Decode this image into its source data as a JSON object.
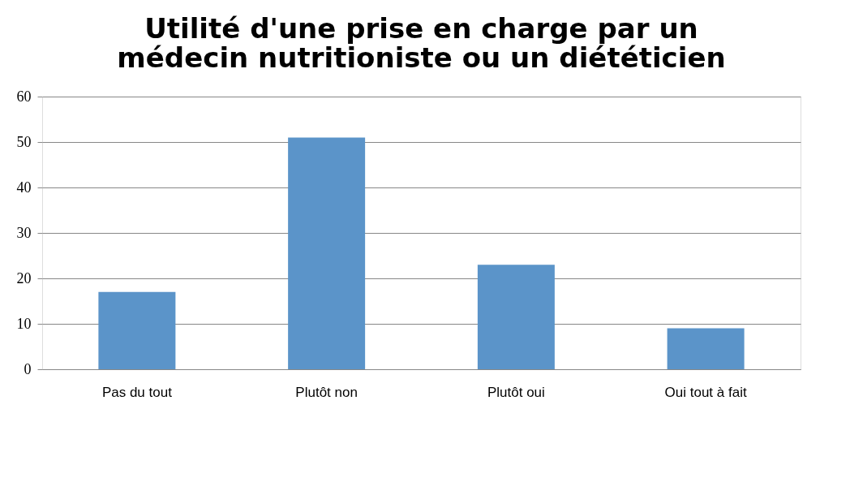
{
  "chart_data": {
    "type": "bar",
    "title": [
      "Utilité d'une prise en charge par un",
      "médecin nutritioniste ou un diététicien"
    ],
    "categories": [
      "Pas du tout",
      "Plutôt non",
      "Plutôt oui",
      "Oui tout à fait"
    ],
    "values": [
      17,
      51,
      23,
      9
    ],
    "color": "#5b94c9",
    "ylim": [
      0,
      60
    ],
    "yticks": [
      0,
      10,
      20,
      30,
      40,
      50,
      60
    ],
    "grid": "y"
  }
}
